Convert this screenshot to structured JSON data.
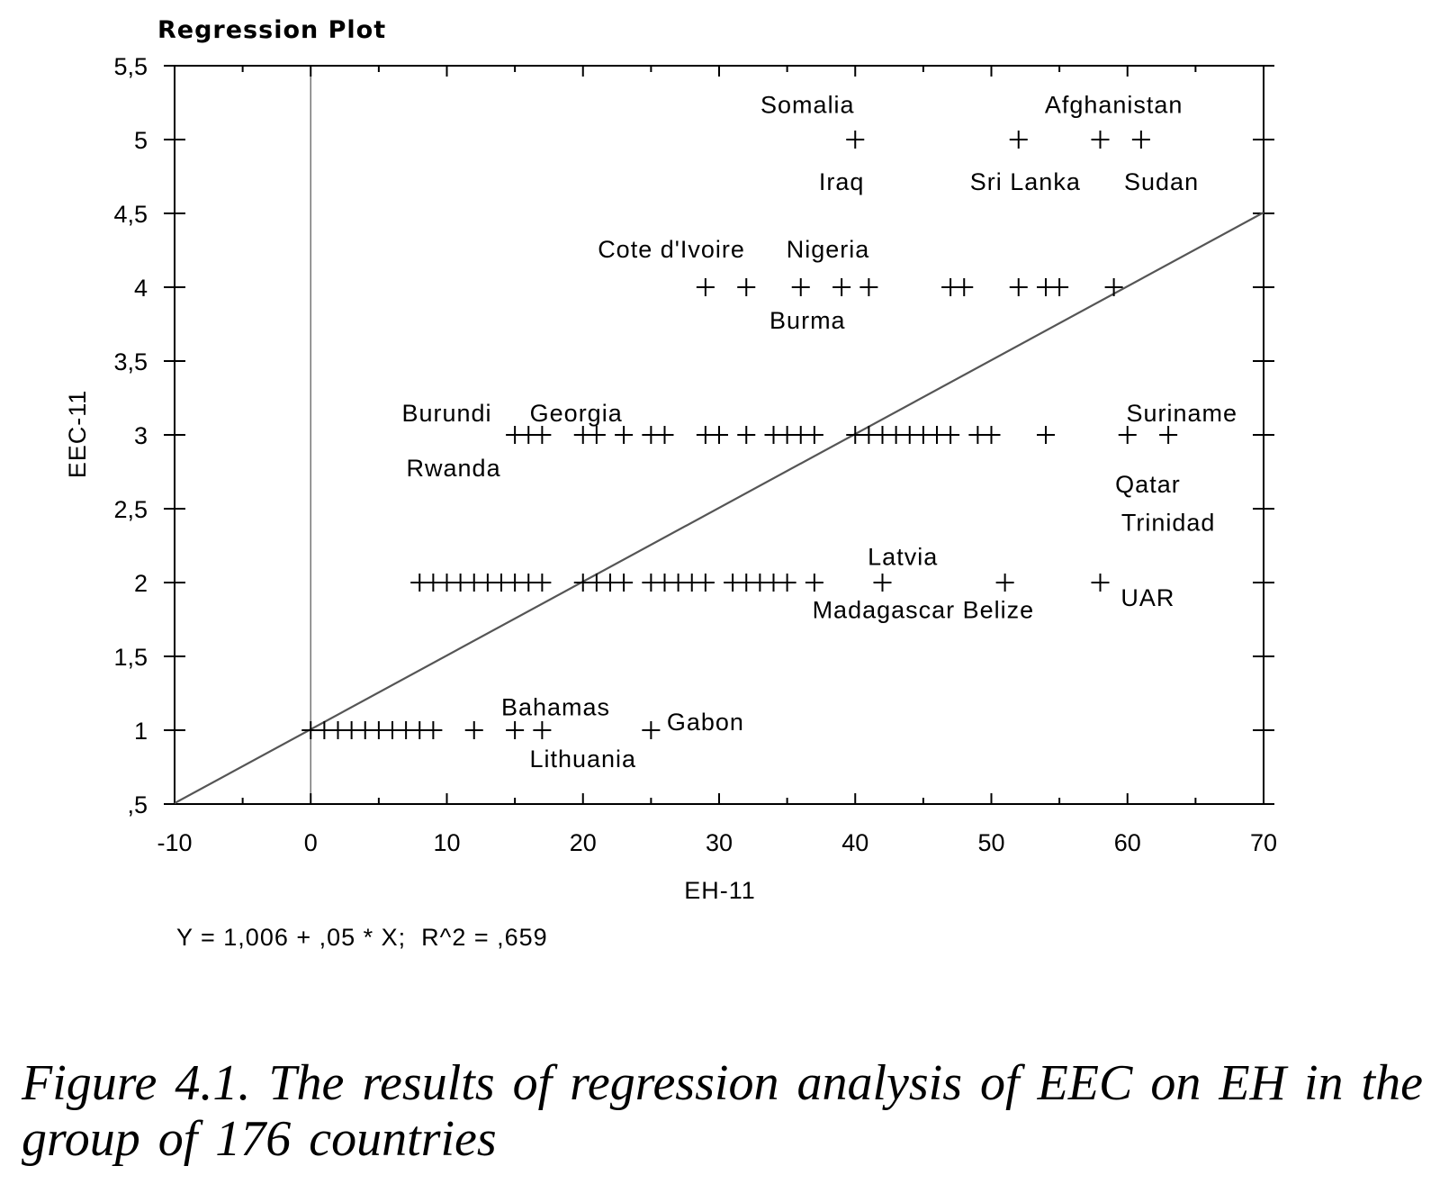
{
  "chart_data": {
    "type": "scatter",
    "title": "Regression Plot",
    "xlabel": "EH-11",
    "ylabel": "EEC-11",
    "xlim": [
      -10,
      70
    ],
    "ylim": [
      0.5,
      5.5
    ],
    "x_ticks": [
      -10,
      0,
      10,
      20,
      30,
      40,
      50,
      60,
      70
    ],
    "x_tick_labels": [
      "-10",
      "0",
      "10",
      "20",
      "30",
      "40",
      "50",
      "60",
      "70"
    ],
    "y_ticks": [
      0.5,
      1,
      1.5,
      2,
      2.5,
      3,
      3.5,
      4,
      4.5,
      5,
      5.5
    ],
    "y_tick_labels": [
      ",5",
      "1",
      "1,5",
      "2",
      "2,5",
      "3",
      "3,5",
      "4",
      "4,5",
      "5",
      "5,5"
    ],
    "grid": false,
    "reference_line_x": 0,
    "regression": {
      "intercept": 1.006,
      "slope": 0.05,
      "r2": 0.659
    },
    "equation_text": "Y = 1,006 + ,05 * X;  R^2 = ,659",
    "points": [
      {
        "y": 5,
        "x": [
          40,
          52,
          58,
          61
        ]
      },
      {
        "y": 4,
        "x": [
          29,
          32,
          36,
          39,
          41,
          47,
          48,
          52,
          54,
          55,
          59
        ]
      },
      {
        "y": 3,
        "x": [
          15,
          16,
          17,
          20,
          21,
          23,
          25,
          26,
          29,
          30,
          32,
          34,
          35,
          36,
          37,
          40,
          41,
          42,
          43,
          44,
          45,
          46,
          47,
          49,
          50,
          54,
          60,
          63
        ]
      },
      {
        "y": 2,
        "x": [
          8,
          9,
          10,
          11,
          12,
          13,
          14,
          15,
          16,
          17,
          20,
          21,
          22,
          23,
          25,
          26,
          27,
          28,
          29,
          31,
          32,
          33,
          34,
          35,
          37,
          42,
          51,
          58
        ]
      },
      {
        "y": 1,
        "x": [
          0,
          1,
          2,
          3,
          4,
          5,
          6,
          7,
          8,
          9,
          12,
          15,
          17,
          25
        ]
      }
    ],
    "annotations": [
      {
        "text": "Somalia",
        "x": 36.5,
        "y": 5.18
      },
      {
        "text": "Afghanistan",
        "x": 59,
        "y": 5.18
      },
      {
        "text": "Iraq",
        "x": 39,
        "y": 4.66
      },
      {
        "text": "Sri Lanka",
        "x": 52.5,
        "y": 4.66
      },
      {
        "text": "Sudan",
        "x": 62.5,
        "y": 4.66
      },
      {
        "text": "Cote  d'Ivoire",
        "x": 26.5,
        "y": 4.2
      },
      {
        "text": "Nigeria",
        "x": 38,
        "y": 4.2
      },
      {
        "text": "Burma",
        "x": 36.5,
        "y": 3.72
      },
      {
        "text": "Burundi",
        "x": 10,
        "y": 3.09
      },
      {
        "text": "Georgia",
        "x": 19.5,
        "y": 3.09
      },
      {
        "text": "Suriname",
        "x": 64,
        "y": 3.09
      },
      {
        "text": "Rwanda",
        "x": 10.5,
        "y": 2.72
      },
      {
        "text": "Qatar",
        "x": 61.5,
        "y": 2.61
      },
      {
        "text": "Trinidad",
        "x": 63,
        "y": 2.35
      },
      {
        "text": "Latvia",
        "x": 43.5,
        "y": 2.12
      },
      {
        "text": "UAR",
        "x": 61.5,
        "y": 1.84
      },
      {
        "text": "Madagascar Belize",
        "x": 45,
        "y": 1.76
      },
      {
        "text": "Bahamas",
        "x": 18,
        "y": 1.1
      },
      {
        "text": "Gabon",
        "x": 29,
        "y": 1
      },
      {
        "text": "Lithuania",
        "x": 20,
        "y": 0.75
      }
    ]
  },
  "caption": "Figure  4.1.  The results  of regression analysis of EEC  on EH in the group  of 176  countries"
}
